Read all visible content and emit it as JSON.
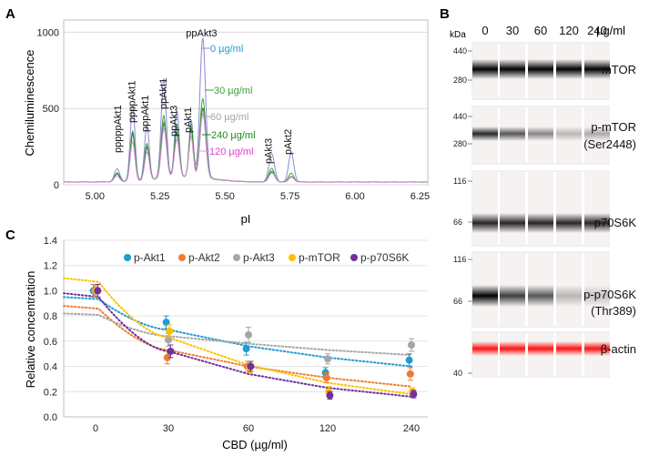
{
  "panels": {
    "a": "A",
    "b": "B",
    "c": "C"
  },
  "chart_data": [
    {
      "type": "line",
      "panel": "A",
      "xlabel": "pI",
      "ylabel": "Chemiluminescence",
      "xlim": [
        4.88,
        6.28
      ],
      "ylim": [
        0,
        1080
      ],
      "xticks": [
        5.0,
        5.25,
        5.5,
        5.75,
        6.0,
        6.25
      ],
      "xtick_labels": [
        "5.00",
        "5.25",
        "5.50",
        "5.75",
        "6.00",
        "6.25"
      ],
      "yticks": [
        0,
        500,
        1000
      ],
      "ytick_labels": [
        "0",
        "500",
        "1000"
      ],
      "grid": "horizontal",
      "peak_labels": [
        {
          "text": "pppppAkt1",
          "x": 5.1
        },
        {
          "text": "ppppAkt1",
          "x": 5.155
        },
        {
          "text": "pppAkt1",
          "x": 5.205
        },
        {
          "text": "ppAkt1",
          "x": 5.275
        },
        {
          "text": "ppAkt3",
          "x": 5.315
        },
        {
          "text": "pAkt1",
          "x": 5.37
        },
        {
          "text": "ppAkt3",
          "x": 5.41
        },
        {
          "text": "pAkt3",
          "x": 5.68
        },
        {
          "text": "pAkt2",
          "x": 5.755
        }
      ],
      "series": [
        {
          "name": "0 µg/ml",
          "color": "#1f9bd7",
          "line_color": "#8a8ad8",
          "peaks": [
            [
              5.085,
              90,
              0.01
            ],
            [
              5.145,
              520,
              0.009
            ],
            [
              5.2,
              360,
              0.009
            ],
            [
              5.265,
              640,
              0.01
            ],
            [
              5.315,
              420,
              0.009
            ],
            [
              5.37,
              380,
              0.008
            ],
            [
              5.415,
              930,
              0.011
            ],
            [
              5.68,
              180,
              0.011
            ],
            [
              5.755,
              190,
              0.01
            ]
          ]
        },
        {
          "name": "30 µg/ml",
          "color": "#3aa23a",
          "line_color": "#3aa23a",
          "peaks": [
            [
              5.085,
              60,
              0.01
            ],
            [
              5.145,
              340,
              0.009
            ],
            [
              5.2,
              250,
              0.009
            ],
            [
              5.265,
              420,
              0.01
            ],
            [
              5.315,
              330,
              0.009
            ],
            [
              5.37,
              340,
              0.008
            ],
            [
              5.415,
              540,
              0.011
            ],
            [
              5.68,
              90,
              0.011
            ],
            [
              5.755,
              60,
              0.01
            ]
          ]
        },
        {
          "name": "60 µg/ml",
          "color": "#a6a6a6",
          "line_color": "#a6a6a6",
          "peaks": [
            [
              5.085,
              55,
              0.01
            ],
            [
              5.145,
              310,
              0.009
            ],
            [
              5.2,
              230,
              0.009
            ],
            [
              5.265,
              390,
              0.01
            ],
            [
              5.315,
              310,
              0.009
            ],
            [
              5.37,
              320,
              0.008
            ],
            [
              5.415,
              470,
              0.011
            ],
            [
              5.68,
              75,
              0.011
            ],
            [
              5.755,
              40,
              0.01
            ]
          ]
        },
        {
          "name": "240 µg/ml",
          "color": "#1a8a1a",
          "line_color": "#1a8a1a",
          "peaks": [
            [
              5.085,
              50,
              0.01
            ],
            [
              5.145,
              300,
              0.009
            ],
            [
              5.2,
              220,
              0.009
            ],
            [
              5.265,
              370,
              0.01
            ],
            [
              5.315,
              300,
              0.009
            ],
            [
              5.37,
              310,
              0.008
            ],
            [
              5.415,
              450,
              0.011
            ],
            [
              5.68,
              70,
              0.011
            ],
            [
              5.755,
              35,
              0.01
            ]
          ]
        },
        {
          "name": "120 µg/ml",
          "color": "#e040d0",
          "line_color": "#e890e0",
          "peaks": [
            [
              5.085,
              40,
              0.01
            ],
            [
              5.145,
              250,
              0.009
            ],
            [
              5.2,
              180,
              0.009
            ],
            [
              5.265,
              320,
              0.01
            ],
            [
              5.315,
              260,
              0.009
            ],
            [
              5.37,
              270,
              0.008
            ],
            [
              5.415,
              400,
              0.011
            ],
            [
              5.68,
              60,
              0.011
            ],
            [
              5.755,
              30,
              0.01
            ]
          ]
        }
      ]
    },
    {
      "type": "scatter",
      "panel": "C",
      "xlabel": "CBD (µg/ml)",
      "ylabel": "Relative  concentration",
      "ylim": [
        0,
        1.4
      ],
      "yticks": [
        0,
        0.2,
        0.4,
        0.6,
        0.8,
        1.0,
        1.2,
        1.4
      ],
      "ytick_labels": [
        "0.0",
        "0.2",
        "0.4",
        "0.6",
        "0.8",
        "1.0",
        "1.2",
        "1.4"
      ],
      "categories": [
        "0",
        "30",
        "60",
        "120",
        "240"
      ],
      "grid": "horizontal",
      "legend": "top",
      "series": [
        {
          "name": "p-Akt1",
          "color": "#1f9bd7",
          "values": [
            1.0,
            0.75,
            0.54,
            0.35,
            0.45
          ],
          "errors": [
            0.05,
            0.05,
            0.05,
            0.04,
            0.05
          ],
          "fit": [
            0.95,
            0.69,
            0.56,
            0.47,
            0.4
          ]
        },
        {
          "name": "p-Akt2",
          "color": "#ed7d31",
          "values": [
            1.0,
            0.47,
            0.4,
            0.31,
            0.34
          ],
          "errors": [
            0.05,
            0.05,
            0.04,
            0.04,
            0.05
          ],
          "fit": [
            0.88,
            0.53,
            0.4,
            0.31,
            0.24
          ]
        },
        {
          "name": "p-Akt3",
          "color": "#a6a6a6",
          "values": [
            1.0,
            0.61,
            0.65,
            0.46,
            0.57
          ],
          "errors": [
            0.05,
            0.05,
            0.06,
            0.04,
            0.05
          ],
          "fit": [
            0.82,
            0.64,
            0.58,
            0.53,
            0.49
          ]
        },
        {
          "name": "p-mTOR",
          "color": "#ffc000",
          "values": [
            1.0,
            0.68,
            0.39,
            0.2,
            0.2
          ],
          "errors": [
            0.05,
            0.05,
            0.04,
            0.04,
            0.03
          ],
          "fit": [
            1.1,
            0.63,
            0.41,
            0.27,
            0.18
          ]
        },
        {
          "name": "p-p70S6K",
          "color": "#7030a0",
          "values": [
            1.0,
            0.52,
            0.4,
            0.17,
            0.18
          ],
          "errors": [
            0.05,
            0.05,
            0.04,
            0.03,
            0.03
          ],
          "fit": [
            0.98,
            0.52,
            0.34,
            0.23,
            0.16
          ]
        }
      ]
    }
  ],
  "blot": {
    "unit": "kDa",
    "dose_unit": "µg/ml",
    "doses": [
      "0",
      "30",
      "60",
      "120",
      "240"
    ],
    "bands": [
      {
        "name": "mTOR",
        "markers": [
          "440",
          "280"
        ],
        "intensity": [
          1.0,
          1.0,
          1.0,
          1.0,
          1.0
        ],
        "color": "#000000"
      },
      {
        "name": "p-mTOR",
        "sub": "(Ser2448)",
        "markers": [
          "440",
          "280"
        ],
        "intensity": [
          0.85,
          0.65,
          0.45,
          0.25,
          0.3
        ],
        "color": "#000000"
      },
      {
        "name": "p70S6K",
        "markers": [
          "116",
          "66"
        ],
        "intensity": [
          0.85,
          0.85,
          0.85,
          0.85,
          0.85
        ],
        "color": "#000000"
      },
      {
        "name": "p-p70S6K",
        "sub": "(Thr389)",
        "markers": [
          "116",
          "66"
        ],
        "intensity": [
          1.0,
          0.75,
          0.65,
          0.25,
          0.2
        ],
        "color": "#000000"
      },
      {
        "name": "β-actin",
        "markers": [
          "40"
        ],
        "intensity": [
          1.0,
          1.0,
          1.0,
          1.0,
          1.0
        ],
        "color": "#ff1010"
      }
    ]
  }
}
